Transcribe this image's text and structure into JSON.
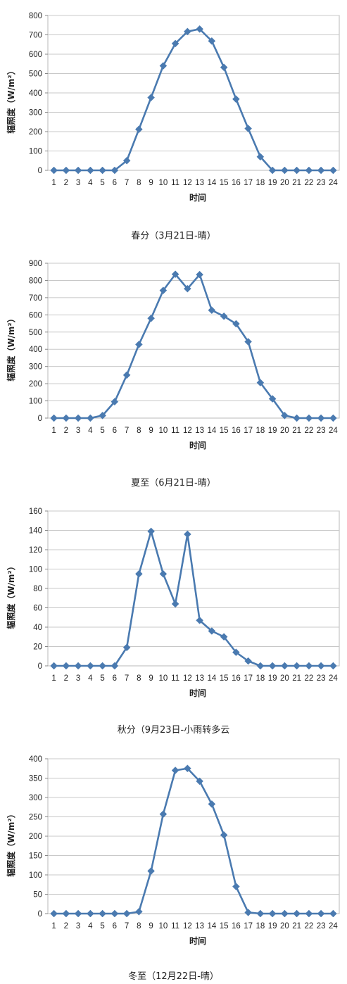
{
  "chart_data": [
    {
      "type": "line",
      "caption": "春分（3月21日-晴）",
      "xlabel": "时间",
      "ylabel": "辐照度（W/m²）",
      "categories": [
        "1",
        "2",
        "3",
        "4",
        "5",
        "6",
        "7",
        "8",
        "9",
        "10",
        "11",
        "12",
        "13",
        "14",
        "15",
        "16",
        "17",
        "18",
        "19",
        "20",
        "21",
        "22",
        "23",
        "24"
      ],
      "values": [
        0,
        0,
        0,
        0,
        0,
        0,
        50,
        212,
        376,
        540,
        655,
        717,
        730,
        668,
        532,
        368,
        216,
        70,
        0,
        0,
        0,
        0,
        0,
        0
      ],
      "ylim": [
        0,
        800
      ],
      "yticks": [
        0,
        100,
        200,
        300,
        400,
        500,
        600,
        700,
        800
      ],
      "grid": true,
      "color": "#4a7ab0"
    },
    {
      "type": "line",
      "caption": "夏至（6月21日-晴）",
      "xlabel": "时间",
      "ylabel": "辐照度（W/m²）",
      "categories": [
        "1",
        "2",
        "3",
        "4",
        "5",
        "6",
        "7",
        "8",
        "9",
        "10",
        "11",
        "12",
        "13",
        "14",
        "15",
        "16",
        "17",
        "18",
        "19",
        "20",
        "21",
        "22",
        "23",
        "24"
      ],
      "values": [
        0,
        0,
        0,
        0,
        15,
        95,
        250,
        428,
        580,
        742,
        836,
        752,
        834,
        627,
        592,
        548,
        444,
        206,
        112,
        15,
        0,
        0,
        0,
        0
      ],
      "ylim": [
        0,
        900
      ],
      "yticks": [
        0,
        100,
        200,
        300,
        400,
        500,
        600,
        700,
        800,
        900
      ],
      "grid": true,
      "color": "#4a7ab0"
    },
    {
      "type": "line",
      "caption": "秋分（9月23日-小雨转多云",
      "xlabel": "时间",
      "ylabel": "辐照度（W/m²）",
      "categories": [
        "1",
        "2",
        "3",
        "4",
        "5",
        "6",
        "7",
        "8",
        "9",
        "10",
        "11",
        "12",
        "13",
        "14",
        "15",
        "16",
        "17",
        "18",
        "19",
        "20",
        "21",
        "22",
        "23",
        "24"
      ],
      "values": [
        0,
        0,
        0,
        0,
        0,
        0,
        19,
        95,
        139,
        95,
        64,
        136,
        47,
        36,
        30,
        14,
        5,
        0,
        0,
        0,
        0,
        0,
        0,
        0
      ],
      "ylim": [
        0,
        160
      ],
      "yticks": [
        0,
        20,
        40,
        60,
        80,
        100,
        120,
        140,
        160
      ],
      "grid": true,
      "color": "#4a7ab0"
    },
    {
      "type": "line",
      "caption": "冬至（12月22日-晴）",
      "xlabel": "时间",
      "ylabel": "辐照度（W/m²）",
      "categories": [
        "1",
        "2",
        "3",
        "4",
        "5",
        "6",
        "7",
        "8",
        "9",
        "10",
        "11",
        "12",
        "13",
        "14",
        "15",
        "16",
        "17",
        "18",
        "19",
        "20",
        "21",
        "22",
        "23",
        "24"
      ],
      "values": [
        0,
        0,
        0,
        0,
        0,
        0,
        0,
        5,
        110,
        257,
        370,
        375,
        342,
        283,
        203,
        70,
        3,
        0,
        0,
        0,
        0,
        0,
        0,
        0
      ],
      "ylim": [
        0,
        400
      ],
      "yticks": [
        0,
        50,
        100,
        150,
        200,
        250,
        300,
        350,
        400
      ],
      "grid": true,
      "color": "#4a7ab0"
    }
  ]
}
